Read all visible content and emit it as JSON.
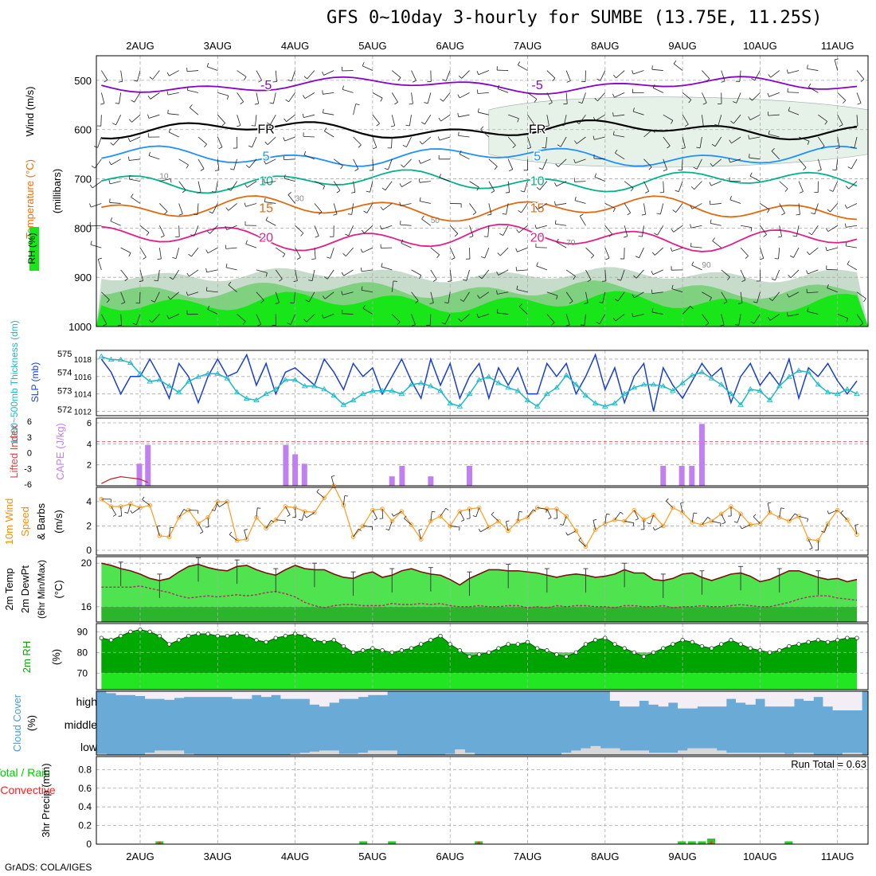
{
  "title": "GFS 0~10day 3-hourly for SUMBE (13.75E, 11.25S)",
  "footer": "GrADS: COLA/IGES",
  "run_total": "Run Total = 0.63",
  "chart_data": [
    {
      "type": "heatmap",
      "panel": "upper-air",
      "ylabel_parts": [
        {
          "text": "RH (%)",
          "color": "#00aa00"
        },
        {
          "text": "Temperature (°C)",
          "color": "#ff6a00"
        },
        {
          "text": "Wind (m/s)",
          "color": "#000000"
        }
      ],
      "ylabel2": "(millibars)",
      "x_tick_labels": [
        "2AUG",
        "3AUG",
        "4AUG",
        "5AUG",
        "6AUG",
        "7AUG",
        "8AUG",
        "9AUG",
        "10AUG",
        "11AUG"
      ],
      "y_ticks": [
        500,
        600,
        700,
        800,
        900,
        1000
      ],
      "ylim": [
        450,
        1000
      ],
      "temperature_contours": [
        {
          "label": "-5",
          "level_mb": 510,
          "color": "#8800cc"
        },
        {
          "label": "FR",
          "level_mb": 600,
          "color": "#000000"
        },
        {
          "label": "5",
          "level_mb": 655,
          "color": "#1e90ff"
        },
        {
          "label": "10",
          "level_mb": 705,
          "color": "#00b28a"
        },
        {
          "label": "15",
          "level_mb": 760,
          "color": "#e06a10"
        },
        {
          "label": "20",
          "level_mb": 820,
          "color": "#e0208a"
        }
      ],
      "rh_contour_labels": [
        "10",
        "30",
        "50",
        "70",
        "90"
      ]
    },
    {
      "type": "line",
      "panel": "pressure-thickness",
      "ylabel_left": "1000~500mb Thickness (dm)",
      "ylabel_right": "SLP (mb)",
      "left_ticks": [
        572,
        573,
        574,
        575
      ],
      "right_ticks": [
        1012,
        1014,
        1016,
        1018
      ],
      "series": [
        {
          "name": "SLP (mb)",
          "color": "#1a3fd0",
          "values": [
            1018,
            1016.5,
            1014,
            1016,
            1016,
            1018,
            1016,
            1013.5,
            1017.5,
            1016,
            1013,
            1016,
            1018,
            1016,
            1016.5,
            1018.5,
            1015,
            1017.5,
            1014,
            1016.5,
            1017,
            1016,
            1015,
            1018,
            1016.5,
            1014.5,
            1017.5,
            1016,
            1017,
            1014,
            1016,
            1018,
            1015.5,
            1013.5,
            1018,
            1015,
            1017.5,
            1013.5,
            1016,
            1017.5,
            1013.5,
            1017,
            1015,
            1017,
            1014,
            1014,
            1017.5,
            1016,
            1017.5,
            1014,
            1016,
            1018.5,
            1014.5,
            1017,
            1013,
            1016,
            1017.5,
            1012,
            1017,
            1015,
            1013.5,
            1015.5,
            1017.5,
            1016,
            1017,
            1013,
            1016,
            1017.5,
            1015,
            1016.5,
            1015,
            1018,
            1013.5,
            1017,
            1016,
            1017.5,
            1015.5,
            1014,
            1015.5
          ]
        },
        {
          "name": "1000~500mb Thickness (dm)",
          "color": "#20b8c8",
          "values": [
            575.6,
            575.4,
            575.4,
            575.2,
            574.5,
            574,
            574.1,
            573.7,
            573.3,
            574,
            574.3,
            574.5,
            574.5,
            574.2,
            573.3,
            572.9,
            572.8,
            573.2,
            573.5,
            574.1,
            574.1,
            573.7,
            573.7,
            573.5,
            573.1,
            572.5,
            572.8,
            573.2,
            573.4,
            573.4,
            573.4,
            573.2,
            573.8,
            573.9,
            573.7,
            573.4,
            572.6,
            572.4,
            573.2,
            574.1,
            574.3,
            573.9,
            573.6,
            573.4,
            572.8,
            572.4,
            573.2,
            573.6,
            574.4,
            573.8,
            573.1,
            572.6,
            572.4,
            572.6,
            573.2,
            573.6,
            573.8,
            573.8,
            573.7,
            573.4,
            573.9,
            574.4,
            574.6,
            574.2,
            573.8,
            573.2,
            572.5,
            573.5,
            573.4,
            572.8,
            573.7,
            574.3,
            574.7,
            574.6,
            573.8,
            573.3,
            573.2,
            573.5,
            573.2
          ]
        }
      ]
    },
    {
      "type": "bar",
      "panel": "instability",
      "ylabel_left": "Lifted Index",
      "ylabel_right": "CAPE (J/kg)",
      "li_ticks": [
        -6,
        -3,
        0,
        3,
        6
      ],
      "cape_ticks": [
        2,
        4,
        6
      ],
      "cape_bar_x": [
        1.99,
        2.1,
        3.88,
        4.0,
        4.12,
        5.25,
        5.38,
        5.75,
        6.25,
        8.75,
        8.99,
        9.12,
        9.25
      ],
      "cape_bar_values": [
        2.1,
        3.9,
        3.9,
        3.0,
        2.1,
        0.9,
        1.9,
        0.9,
        1.9,
        1.9,
        1.9,
        1.9,
        5.9
      ],
      "li_line": [
        [
          1.5,
          5.6
        ],
        [
          1.62,
          4.8
        ],
        [
          1.75,
          4.4
        ],
        [
          1.87,
          4.6
        ],
        [
          1.99,
          4.8
        ],
        [
          2.1,
          5.4
        ]
      ]
    },
    {
      "type": "line",
      "panel": "10m-wind",
      "ylabel_parts": [
        {
          "text": "10m Wind",
          "color": "#ff8c00"
        },
        {
          "text": "Speed",
          "color": "#ff8c00"
        },
        {
          "text": "& Barbs",
          "color": "#000000"
        },
        {
          "text": "(m/s)",
          "color": "#000000"
        }
      ],
      "y_ticks": [
        0,
        2,
        4
      ],
      "ylim": [
        0,
        5.3
      ],
      "series": [
        {
          "name": "Speed",
          "color": "#ff9a20",
          "values": [
            4.2,
            3.6,
            3.6,
            3.8,
            3.5,
            3.7,
            1.2,
            1.1,
            2.7,
            3.3,
            2.2,
            2.7,
            4.0,
            4.0,
            0.8,
            0.9,
            2.7,
            1.8,
            2.5,
            3.6,
            3.5,
            3.2,
            3.1,
            4.3,
            5.3,
            3.7,
            1.1,
            2.0,
            3.3,
            3.4,
            2.4,
            3.2,
            2.1,
            0.9,
            2.4,
            2.8,
            2.0,
            3.2,
            3.4,
            3.5,
            1.9,
            2.4,
            1.6,
            2.4,
            2.7,
            3.5,
            3.4,
            3.4,
            2.8,
            1.6,
            0.3,
            1.7,
            2.2,
            2.5,
            2.4,
            3.3,
            2.5,
            2.9,
            2.0,
            3.5,
            3.1,
            2.3,
            2.1,
            2.4,
            3.0,
            3.6,
            3.0,
            2.1,
            2.2,
            3.1,
            2.7,
            2.4,
            2.8,
            0.9,
            0.8,
            2.2,
            3.3,
            2.5,
            1.3
          ]
        }
      ]
    },
    {
      "type": "area",
      "panel": "2m-temp",
      "ylabel": "2m Temp 2m DewPt (6hr Min/Max) (°C)",
      "y_ticks": [
        16,
        20
      ],
      "ylim": [
        14.6,
        20.6
      ],
      "series": [
        {
          "name": "2m Temp",
          "color": "#7a1010",
          "values": [
            20.0,
            19.8,
            19.5,
            19.3,
            19.0,
            18.6,
            18.4,
            18.6,
            19.2,
            19.7,
            19.9,
            19.6,
            19.4,
            19.3,
            19.7,
            19.8,
            19.4,
            19.1,
            18.9,
            19.4,
            19.8,
            19.5,
            19.4,
            19.4,
            19.0,
            18.7,
            18.6,
            19.0,
            19.2,
            18.7,
            18.9,
            19.3,
            19.5,
            19.2,
            19.0,
            18.9,
            18.5,
            18.0,
            18.6,
            19.0,
            19.4,
            19.4,
            19.3,
            19.3,
            19.2,
            19.1,
            18.9,
            18.7,
            18.9,
            19.0,
            18.9,
            18.7,
            18.8,
            19.0,
            19.4,
            19.1,
            19.1,
            18.5,
            18.4,
            18.6,
            19.0,
            19.1,
            18.7,
            18.4,
            18.7,
            19.0,
            19.1,
            18.8,
            18.3,
            18.5,
            18.9,
            19.3,
            19.3,
            19.0,
            18.7,
            18.5,
            18.6,
            18.3,
            18.5
          ]
        },
        {
          "name": "2m DewPt",
          "color": "#b03060",
          "values": [
            17.8,
            17.8,
            17.8,
            17.8,
            17.9,
            17.7,
            17.5,
            17.3,
            17.0,
            16.8,
            16.9,
            17.0,
            16.9,
            17.0,
            17.1,
            17.0,
            17.1,
            17.3,
            17.4,
            17.2,
            16.9,
            16.4,
            16.1,
            15.9,
            16.1,
            16.2,
            16.2,
            16.1,
            16.1,
            16.1,
            16.3,
            16.2,
            16.2,
            16.3,
            16.2,
            16.3,
            16.1,
            16.0,
            16.0,
            16.1,
            16.0,
            16.0,
            16.1,
            16.1,
            15.9,
            16.0,
            15.9,
            16.1,
            16.0,
            16.1,
            16.1,
            16.0,
            16.0,
            15.9,
            16.1,
            16.1,
            16.0,
            16.0,
            16.1,
            15.9,
            16.0,
            16.0,
            16.1,
            16.0,
            16.0,
            16.1,
            16.2,
            16.1,
            16.0,
            16.0,
            16.2,
            16.4,
            16.7,
            16.9,
            17.0,
            17.0,
            16.8,
            16.7,
            16.6
          ]
        }
      ]
    },
    {
      "type": "area",
      "panel": "2m-rh",
      "ylabel": "2m RH (%)",
      "y_ticks": [
        70,
        80,
        90
      ],
      "ylim": [
        62,
        94
      ],
      "series": [
        {
          "name": "2m RH",
          "color": "#00aa00",
          "values": [
            87,
            86,
            88,
            90,
            91,
            90,
            88,
            84,
            86,
            88,
            89,
            89,
            88,
            88,
            89,
            88,
            86,
            85,
            87,
            88,
            89,
            88,
            86,
            85,
            86,
            83,
            80,
            81,
            82,
            81,
            80,
            81,
            82,
            84,
            86,
            88,
            84,
            81,
            78,
            79,
            80,
            82,
            84,
            84,
            85,
            82,
            81,
            79,
            78,
            80,
            84,
            86,
            87,
            84,
            82,
            80,
            78,
            80,
            82,
            84,
            86,
            85,
            83,
            82,
            84,
            86,
            84,
            82,
            81,
            80,
            81,
            83,
            84,
            85,
            86,
            85,
            86,
            87,
            87
          ]
        }
      ]
    },
    {
      "type": "area",
      "panel": "cloud-cover",
      "ylabel": "Cloud Cover (%)",
      "y_category_labels": [
        "high",
        "middle",
        "low"
      ],
      "high_cover": [
        100,
        90,
        80,
        80,
        75,
        60,
        60,
        55,
        65,
        70,
        70,
        70,
        70,
        70,
        60,
        60,
        80,
        70,
        80,
        60,
        60,
        60,
        30,
        20,
        40,
        60,
        60,
        70,
        80,
        80,
        100,
        100,
        100,
        100,
        100,
        100,
        100,
        100,
        100,
        100,
        100,
        100,
        100,
        100,
        100,
        100,
        100,
        100,
        100,
        100,
        100,
        100,
        100,
        50,
        20,
        20,
        50,
        30,
        20,
        40,
        10,
        10,
        20,
        20,
        20,
        60,
        40,
        30,
        60,
        20,
        20,
        20,
        60,
        50,
        70,
        20,
        0,
        0,
        0
      ],
      "low_cover": [
        10,
        0,
        0,
        0,
        0,
        20,
        40,
        40,
        40,
        10,
        0,
        0,
        0,
        0,
        0,
        0,
        0,
        0,
        0,
        0,
        10,
        20,
        30,
        40,
        40,
        10,
        10,
        20,
        40,
        40,
        40,
        0,
        0,
        0,
        0,
        0,
        10,
        50,
        20,
        0,
        0,
        0,
        0,
        0,
        0,
        0,
        0,
        0,
        20,
        40,
        60,
        80,
        60,
        60,
        40,
        40,
        40,
        20,
        20,
        20,
        40,
        60,
        60,
        60,
        40,
        20,
        20,
        20,
        20,
        20,
        20,
        10,
        20,
        20,
        0,
        0,
        0,
        20,
        20
      ]
    },
    {
      "type": "bar",
      "panel": "precip",
      "ylabel_parts": [
        {
          "text": "Total / Rain",
          "color": "#00cc00"
        },
        {
          "text": "Convective",
          "color": "#ff2020"
        },
        {
          "text": "3hr Precip (mm)",
          "color": "#000000"
        }
      ],
      "y_ticks": [
        0,
        0.2,
        0.4,
        0.6,
        0.8
      ],
      "ylim": [
        0,
        0.94
      ],
      "bar_x": [
        2.25,
        4.88,
        5.25,
        6.37,
        8.99,
        9.12,
        9.25,
        9.37,
        10.37
      ],
      "total_values": [
        0.03,
        0.03,
        0.03,
        0.03,
        0.03,
        0.03,
        0.03,
        0.06,
        0.03
      ],
      "convective_values": [
        0.03,
        0,
        0,
        0.03,
        0,
        0,
        0,
        0.03,
        0
      ]
    }
  ]
}
